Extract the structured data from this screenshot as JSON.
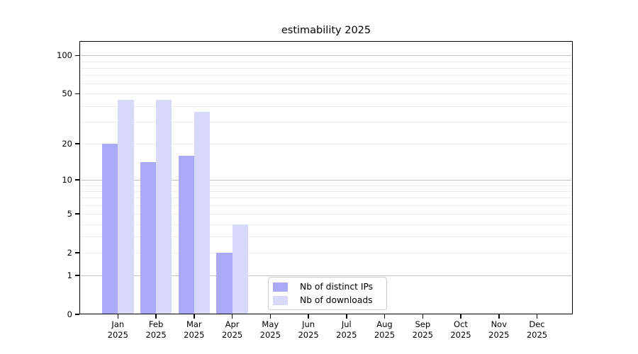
{
  "chart_data": {
    "type": "bar",
    "title": "estimability 2025",
    "categories": [
      "Jan 2025",
      "Feb 2025",
      "Mar 2025",
      "Apr 2025",
      "May 2025",
      "Jun 2025",
      "Jul 2025",
      "Aug 2025",
      "Sep 2025",
      "Oct 2025",
      "Nov 2025",
      "Dec 2025"
    ],
    "series": [
      {
        "name": "Nb of distinct IPs",
        "color": "#aaaaf8",
        "values": [
          20,
          14,
          16,
          2,
          null,
          null,
          null,
          null,
          null,
          null,
          null,
          null
        ]
      },
      {
        "name": "Nb of downloads",
        "color": "#d8d8f8",
        "values": [
          45,
          45,
          36,
          4,
          null,
          null,
          null,
          null,
          null,
          null,
          null,
          null
        ]
      }
    ],
    "yscale": "log1p",
    "ylim": [
      0,
      127
    ],
    "ytick_labels": [
      0,
      1,
      2,
      5,
      10,
      20,
      50,
      100
    ],
    "major_gridlines": [
      1,
      10,
      100
    ],
    "minor_gridlines": [
      2,
      3,
      4,
      5,
      6,
      7,
      8,
      9,
      20,
      30,
      40,
      50,
      60,
      70,
      80,
      90
    ],
    "grid": true,
    "legend_position": "lower center",
    "colors": {
      "grid_major": "#c3c3c3",
      "grid_minor": "#ebebeb",
      "spine": "#000000",
      "text": "#000000",
      "background": "#ffffff"
    }
  }
}
